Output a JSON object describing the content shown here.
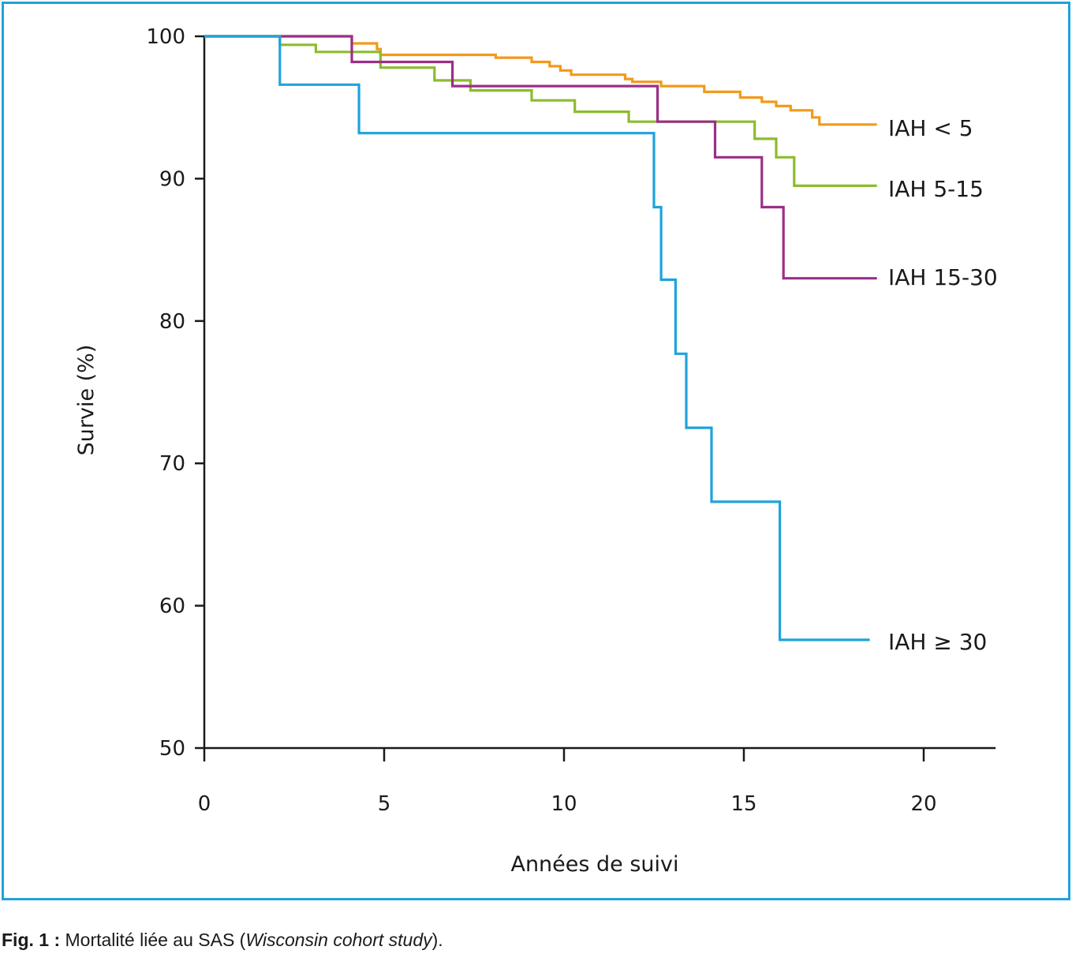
{
  "colors": {
    "frame": "#1fa3dc",
    "axis": "#1a1a1a"
  },
  "chart_data": {
    "type": "line",
    "step": true,
    "title": "",
    "xlabel": "Années de suivi",
    "ylabel": "Survie (%)",
    "xlim": [
      0,
      22
    ],
    "ylim": [
      50,
      100
    ],
    "x_ticks": [
      0,
      5,
      10,
      15,
      20
    ],
    "y_ticks": [
      50,
      60,
      70,
      80,
      90,
      100
    ],
    "grid": false,
    "legend": "inline-right",
    "series": [
      {
        "name": "IAH < 5",
        "color": "#f29a1a",
        "points": [
          [
            0,
            100
          ],
          [
            4.1,
            100
          ],
          [
            4.1,
            99.5
          ],
          [
            4.8,
            99.5
          ],
          [
            4.8,
            99.1
          ],
          [
            4.9,
            99.1
          ],
          [
            4.9,
            98.7
          ],
          [
            8.1,
            98.7
          ],
          [
            8.1,
            98.5
          ],
          [
            9.1,
            98.5
          ],
          [
            9.1,
            98.2
          ],
          [
            9.6,
            98.2
          ],
          [
            9.6,
            97.9
          ],
          [
            9.9,
            97.9
          ],
          [
            9.9,
            97.6
          ],
          [
            10.2,
            97.6
          ],
          [
            10.2,
            97.3
          ],
          [
            11.7,
            97.3
          ],
          [
            11.7,
            97.0
          ],
          [
            11.9,
            97.0
          ],
          [
            11.9,
            96.8
          ],
          [
            12.7,
            96.8
          ],
          [
            12.7,
            96.5
          ],
          [
            13.9,
            96.5
          ],
          [
            13.9,
            96.1
          ],
          [
            14.9,
            96.1
          ],
          [
            14.9,
            95.7
          ],
          [
            15.5,
            95.7
          ],
          [
            15.5,
            95.4
          ],
          [
            15.9,
            95.4
          ],
          [
            15.9,
            95.1
          ],
          [
            16.3,
            95.1
          ],
          [
            16.3,
            94.8
          ],
          [
            16.9,
            94.8
          ],
          [
            16.9,
            94.3
          ],
          [
            17.1,
            94.3
          ],
          [
            17.1,
            93.8
          ],
          [
            18.7,
            93.8
          ]
        ]
      },
      {
        "name": "IAH 5-15",
        "color": "#8dbb2e",
        "points": [
          [
            0,
            100
          ],
          [
            2.1,
            100
          ],
          [
            2.1,
            99.4
          ],
          [
            3.1,
            99.4
          ],
          [
            3.1,
            98.9
          ],
          [
            4.9,
            98.9
          ],
          [
            4.9,
            97.8
          ],
          [
            6.4,
            97.8
          ],
          [
            6.4,
            96.9
          ],
          [
            7.4,
            96.9
          ],
          [
            7.4,
            96.2
          ],
          [
            9.1,
            96.2
          ],
          [
            9.1,
            95.5
          ],
          [
            10.3,
            95.5
          ],
          [
            10.3,
            94.7
          ],
          [
            11.8,
            94.7
          ],
          [
            11.8,
            94.0
          ],
          [
            15.3,
            94.0
          ],
          [
            15.3,
            92.8
          ],
          [
            15.9,
            92.8
          ],
          [
            15.9,
            91.5
          ],
          [
            16.4,
            91.5
          ],
          [
            16.4,
            89.5
          ],
          [
            18.7,
            89.5
          ]
        ]
      },
      {
        "name": "IAH 15-30",
        "color": "#9b2f87",
        "points": [
          [
            0,
            100
          ],
          [
            4.1,
            100
          ],
          [
            4.1,
            98.2
          ],
          [
            6.9,
            98.2
          ],
          [
            6.9,
            96.5
          ],
          [
            12.6,
            96.5
          ],
          [
            12.6,
            94.0
          ],
          [
            14.2,
            94.0
          ],
          [
            14.2,
            91.5
          ],
          [
            15.5,
            91.5
          ],
          [
            15.5,
            88.0
          ],
          [
            16.1,
            88.0
          ],
          [
            16.1,
            83.0
          ],
          [
            18.7,
            83.0
          ]
        ]
      },
      {
        "name": "IAH ≥ 30",
        "color": "#1fa3dc",
        "points": [
          [
            0,
            100
          ],
          [
            2.1,
            100
          ],
          [
            2.1,
            96.6
          ],
          [
            4.3,
            96.6
          ],
          [
            4.3,
            93.2
          ],
          [
            12.5,
            93.2
          ],
          [
            12.5,
            88.0
          ],
          [
            12.7,
            88.0
          ],
          [
            12.7,
            82.9
          ],
          [
            13.1,
            82.9
          ],
          [
            13.1,
            77.7
          ],
          [
            13.4,
            77.7
          ],
          [
            13.4,
            72.5
          ],
          [
            14.1,
            72.5
          ],
          [
            14.1,
            67.3
          ],
          [
            16.0,
            67.3
          ],
          [
            16.0,
            57.6
          ],
          [
            18.5,
            57.6
          ]
        ]
      }
    ]
  },
  "caption": {
    "label": "Fig. 1 :",
    "text": " Mortalité liée au SAS (",
    "italic": "Wisconsin cohort study",
    "end": ")."
  }
}
